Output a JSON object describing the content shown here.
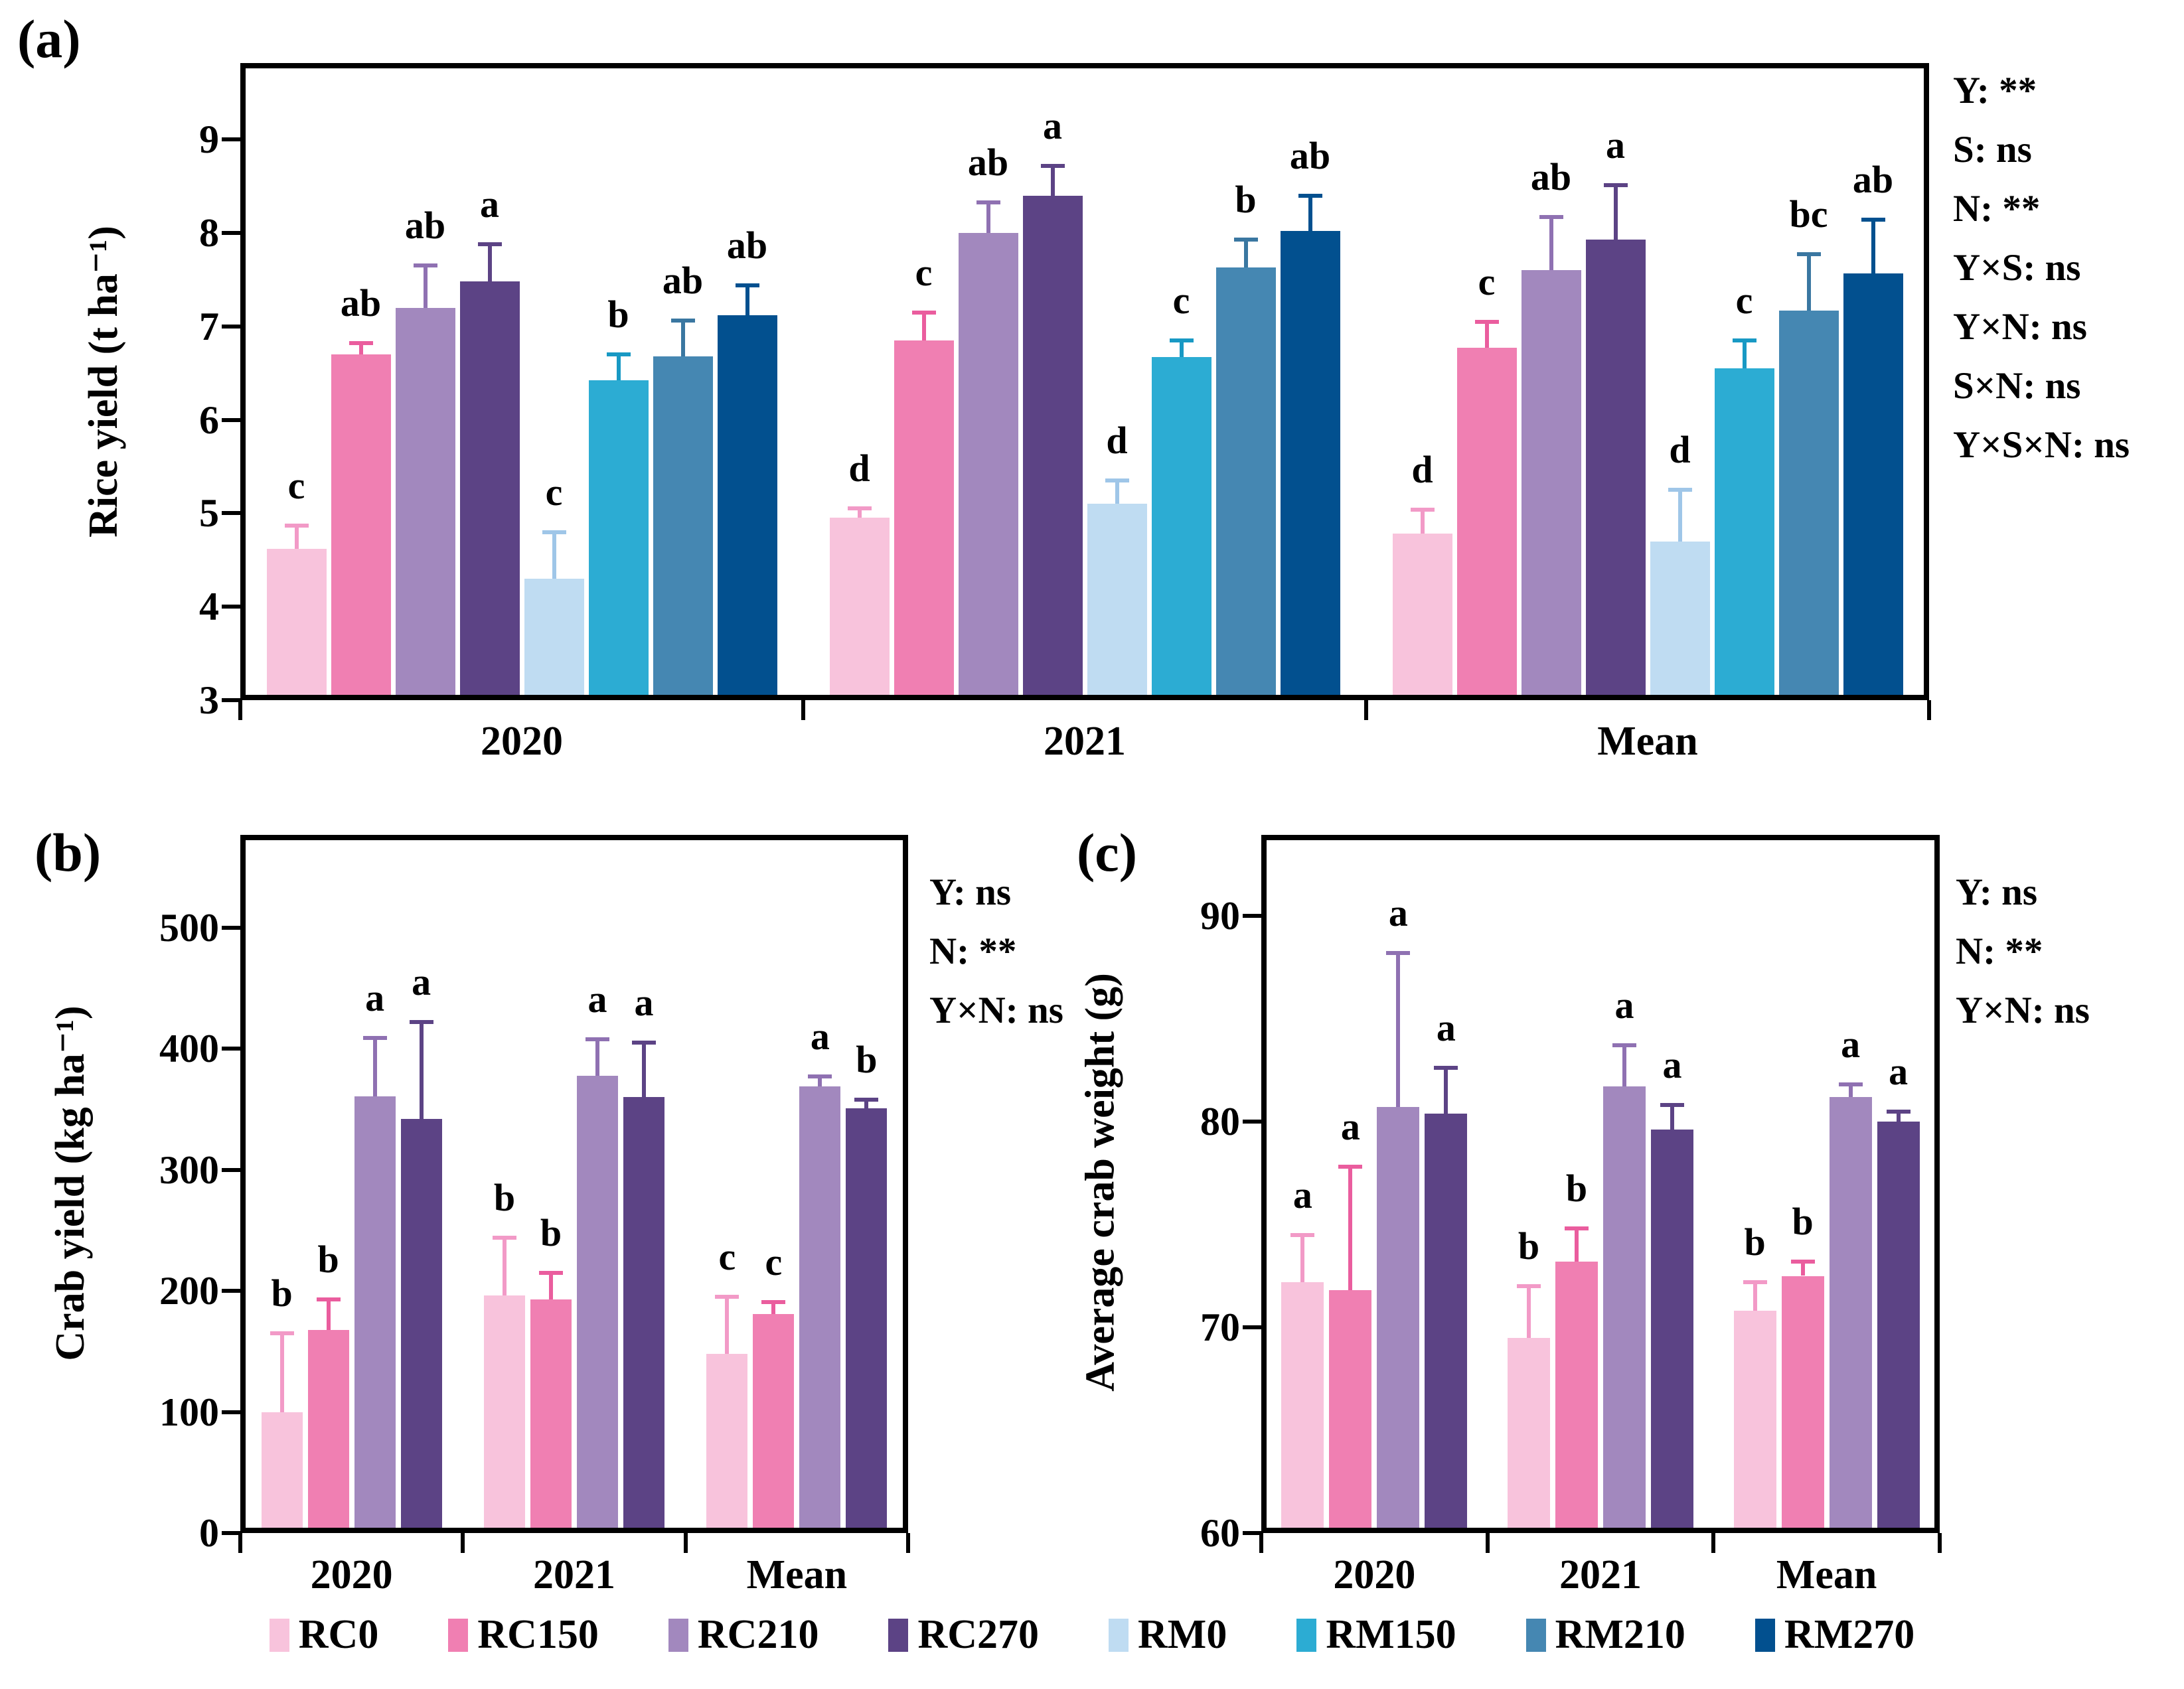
{
  "legend": {
    "items": [
      {
        "label": "RC0",
        "color": "#F8C3DC"
      },
      {
        "label": "RC150",
        "color": "#F07FB2"
      },
      {
        "label": "RC210",
        "color": "#A288BE"
      },
      {
        "label": "RC270",
        "color": "#5C4385"
      },
      {
        "label": "RM0",
        "color": "#BFDCF2"
      },
      {
        "label": "RM150",
        "color": "#2CACD3"
      },
      {
        "label": "RM210",
        "color": "#4587B2"
      },
      {
        "label": "RM270",
        "color": "#02508F"
      }
    ]
  },
  "chart_data": [
    {
      "id": "a",
      "panel_label": "(a)",
      "type": "bar",
      "title": "",
      "xlabel": "",
      "ylabel": "Rice yield (t ha⁻¹)",
      "categories": [
        "2020",
        "2021",
        "Mean"
      ],
      "yticks": [
        3,
        4,
        5,
        6,
        7,
        8,
        9
      ],
      "ylim": [
        3,
        9.8
      ],
      "grid": false,
      "legend_position": "bottom",
      "series": [
        {
          "name": "RC0",
          "color": "#F8C3DC",
          "err_color": "#F29AC7",
          "values": [
            4.62,
            4.95,
            4.78
          ],
          "errors": [
            0.25,
            0.1,
            0.26
          ],
          "letters": [
            "c",
            "d",
            "d"
          ]
        },
        {
          "name": "RC150",
          "color": "#F07FB2",
          "err_color": "#EA5D9E",
          "values": [
            6.7,
            6.85,
            6.77
          ],
          "errors": [
            0.12,
            0.3,
            0.28
          ],
          "letters": [
            "ab",
            "c",
            "c"
          ]
        },
        {
          "name": "RC210",
          "color": "#A288BE",
          "err_color": "#8F71B2",
          "values": [
            7.2,
            8.0,
            7.6
          ],
          "errors": [
            0.45,
            0.33,
            0.57
          ],
          "letters": [
            "ab",
            "ab",
            "ab"
          ]
        },
        {
          "name": "RC270",
          "color": "#5C4385",
          "err_color": "#5C4385",
          "values": [
            7.48,
            8.4,
            7.93
          ],
          "errors": [
            0.4,
            0.32,
            0.58
          ],
          "letters": [
            "a",
            "a",
            "a"
          ]
        },
        {
          "name": "RM0",
          "color": "#BFDCF2",
          "err_color": "#9FC6E8",
          "values": [
            4.3,
            5.1,
            4.7
          ],
          "errors": [
            0.5,
            0.25,
            0.55
          ],
          "letters": [
            "c",
            "d",
            "d"
          ]
        },
        {
          "name": "RM150",
          "color": "#2CACD3",
          "err_color": "#1899C4",
          "values": [
            6.42,
            6.67,
            6.55
          ],
          "errors": [
            0.28,
            0.18,
            0.3
          ],
          "letters": [
            "b",
            "c",
            "c"
          ]
        },
        {
          "name": "RM210",
          "color": "#4587B2",
          "err_color": "#3A77A1",
          "values": [
            6.68,
            7.63,
            7.17
          ],
          "errors": [
            0.38,
            0.3,
            0.6
          ],
          "letters": [
            "ab",
            "b",
            "bc"
          ]
        },
        {
          "name": "RM270",
          "color": "#02508F",
          "err_color": "#02508F",
          "values": [
            7.12,
            8.02,
            7.57
          ],
          "errors": [
            0.32,
            0.38,
            0.57
          ],
          "letters": [
            "ab",
            "ab",
            "ab"
          ]
        }
      ],
      "stats": [
        "Y: **",
        "S: ns",
        "N: **",
        "Y×S: ns",
        "Y×N: ns",
        "S×N: ns",
        "Y×S×N: ns"
      ]
    },
    {
      "id": "b",
      "panel_label": "(b)",
      "type": "bar",
      "title": "",
      "xlabel": "",
      "ylabel": "Crab yield (kg ha⁻¹)",
      "categories": [
        "2020",
        "2021",
        "Mean"
      ],
      "yticks": [
        0,
        100,
        200,
        300,
        400,
        500
      ],
      "ylim": [
        0,
        577
      ],
      "grid": false,
      "legend_position": "bottom",
      "series": [
        {
          "name": "RC0",
          "color": "#F8C3DC",
          "err_color": "#F29AC7",
          "values": [
            100,
            196,
            148
          ],
          "errors": [
            65,
            48,
            47
          ],
          "letters": [
            "b",
            "b",
            "c"
          ]
        },
        {
          "name": "RC150",
          "color": "#F07FB2",
          "err_color": "#EA5D9E",
          "values": [
            168,
            193,
            181
          ],
          "errors": [
            25,
            22,
            10
          ],
          "letters": [
            "b",
            "b",
            "c"
          ]
        },
        {
          "name": "RC210",
          "color": "#A288BE",
          "err_color": "#8F71B2",
          "values": [
            361,
            378,
            369
          ],
          "errors": [
            48,
            30,
            8
          ],
          "letters": [
            "a",
            "a",
            "a"
          ]
        },
        {
          "name": "RC270",
          "color": "#5C4385",
          "err_color": "#5C4385",
          "values": [
            342,
            360,
            351
          ],
          "errors": [
            80,
            45,
            7
          ],
          "letters": [
            "a",
            "a",
            "b"
          ]
        }
      ],
      "stats": [
        "Y: ns",
        "N: **",
        "Y×N: ns"
      ]
    },
    {
      "id": "c",
      "panel_label": "(c)",
      "type": "bar",
      "title": "",
      "xlabel": "",
      "ylabel": "Average crab weight (g)",
      "categories": [
        "2020",
        "2021",
        "Mean"
      ],
      "yticks": [
        60,
        70,
        80,
        90
      ],
      "ylim": [
        60,
        93.9
      ],
      "grid": false,
      "legend_position": "bottom",
      "series": [
        {
          "name": "RC0",
          "color": "#F8C3DC",
          "err_color": "#F29AC7",
          "values": [
            72.2,
            69.5,
            70.8
          ],
          "errors": [
            2.3,
            2.5,
            1.4
          ],
          "letters": [
            "a",
            "b",
            "b"
          ]
        },
        {
          "name": "RC150",
          "color": "#F07FB2",
          "err_color": "#EA5D9E",
          "values": [
            71.8,
            73.2,
            72.5
          ],
          "errors": [
            6.0,
            1.6,
            0.7
          ],
          "letters": [
            "a",
            "b",
            "b"
          ]
        },
        {
          "name": "RC210",
          "color": "#A288BE",
          "err_color": "#8F71B2",
          "values": [
            80.7,
            81.7,
            81.2
          ],
          "errors": [
            7.5,
            2.0,
            0.6
          ],
          "letters": [
            "a",
            "a",
            "a"
          ]
        },
        {
          "name": "RC270",
          "color": "#5C4385",
          "err_color": "#5C4385",
          "values": [
            80.4,
            79.6,
            80.0
          ],
          "errors": [
            2.2,
            1.2,
            0.5
          ],
          "letters": [
            "a",
            "a",
            "a"
          ]
        }
      ],
      "stats": [
        "Y: ns",
        "N: **",
        "Y×N: ns"
      ]
    }
  ]
}
